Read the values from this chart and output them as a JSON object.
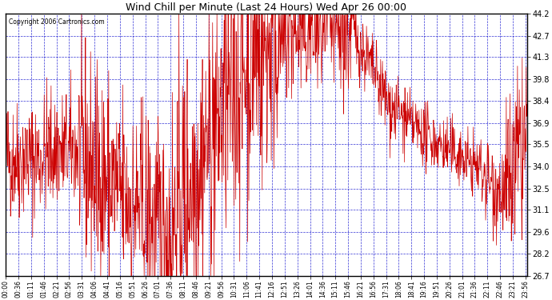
{
  "title": "Wind Chill per Minute (Last 24 Hours) Wed Apr 26 00:00",
  "copyright": "Copyright 2006 Cartronics.com",
  "bg_color": "#ffffff",
  "plot_bg_color": "#ffffff",
  "line_color": "#cc0000",
  "grid_color": "#0000cc",
  "title_color": "#000000",
  "copyright_color": "#000000",
  "border_color": "#000000",
  "y_min": 26.7,
  "y_max": 44.2,
  "yticks": [
    26.7,
    28.2,
    29.6,
    31.1,
    32.5,
    34.0,
    35.5,
    36.9,
    38.4,
    39.8,
    41.3,
    42.7,
    44.2
  ],
  "num_points": 1440,
  "seed": 42,
  "tick_interval": 35,
  "xtick_labels": [
    "00:00",
    "00:36",
    "01:11",
    "01:46",
    "02:21",
    "02:56",
    "03:31",
    "04:06",
    "04:41",
    "05:16",
    "05:51",
    "06:26",
    "07:01",
    "07:36",
    "08:11",
    "08:46",
    "09:21",
    "09:56",
    "10:31",
    "11:06",
    "11:41",
    "12:16",
    "12:51",
    "13:26",
    "14:01",
    "14:36",
    "15:11",
    "15:46",
    "16:21",
    "16:56",
    "17:31",
    "18:06",
    "18:41",
    "19:16",
    "19:51",
    "20:26",
    "21:01",
    "21:36",
    "22:11",
    "22:46",
    "23:21",
    "23:56"
  ]
}
